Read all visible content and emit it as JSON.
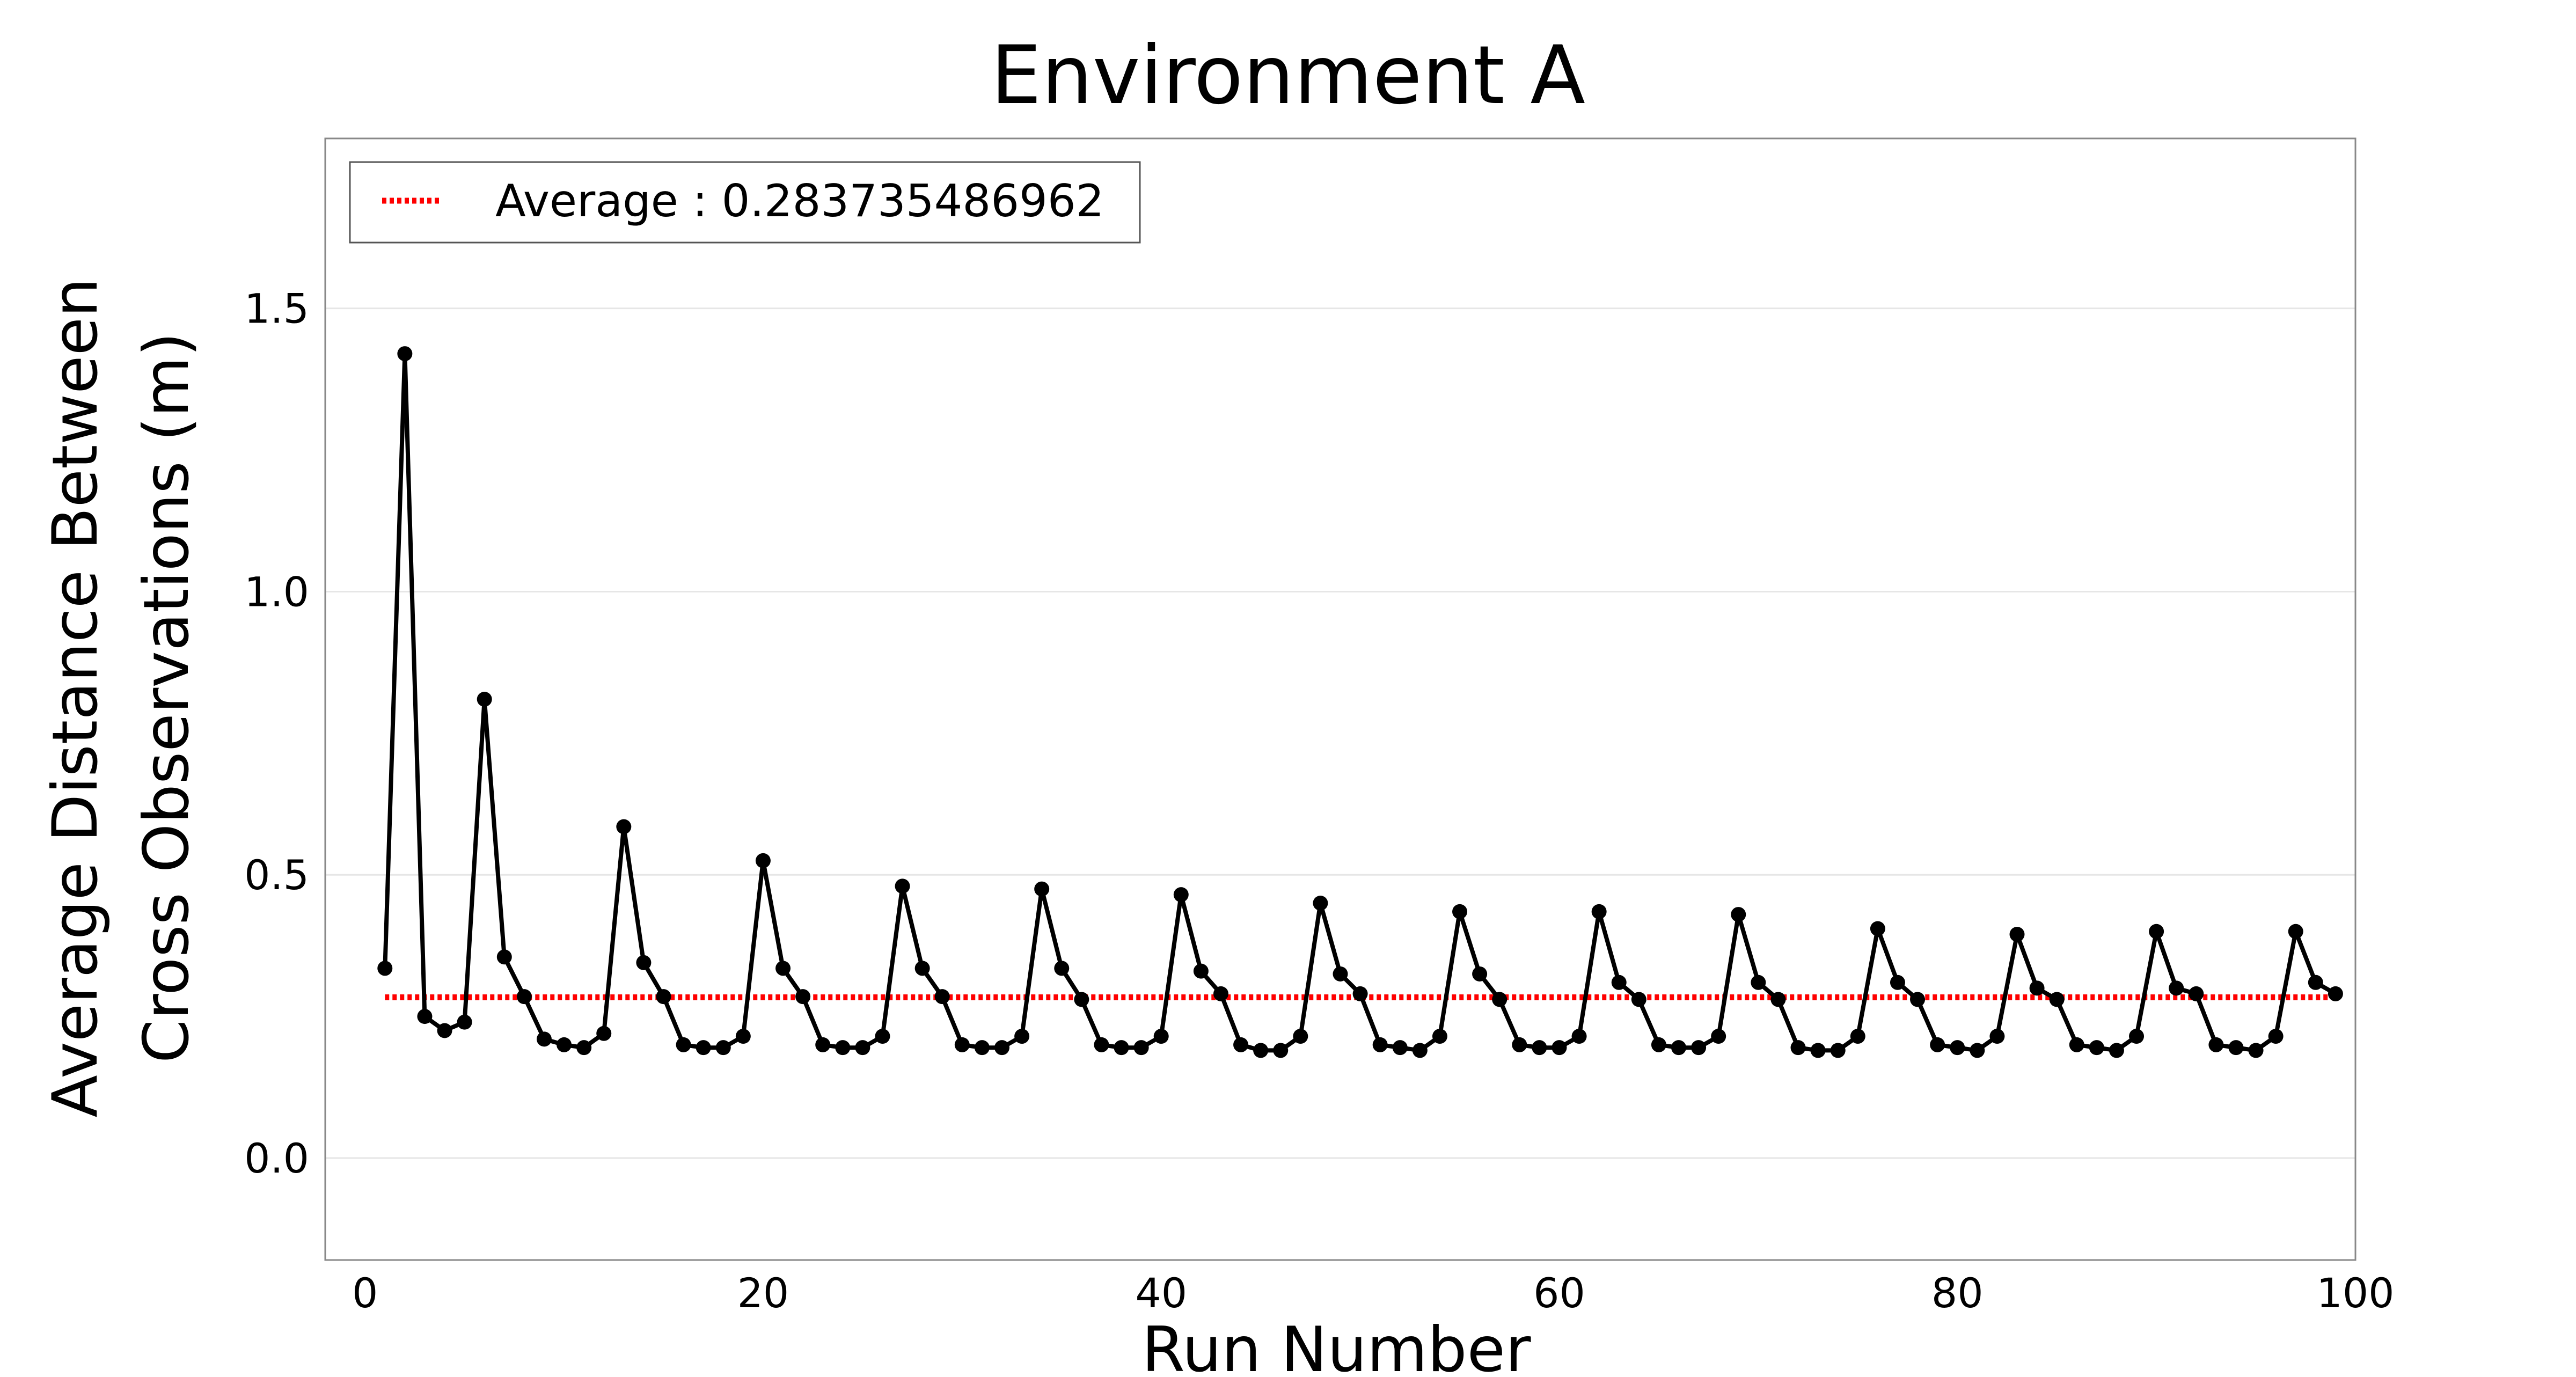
{
  "chart_data": {
    "type": "line",
    "title": "Environment A",
    "xlabel": "Run Number",
    "ylabel_line1": "Average Distance Between",
    "ylabel_line2": "Cross Observations (m)",
    "xlim": [
      -2,
      100
    ],
    "ylim": [
      -0.18,
      1.8
    ],
    "x_ticks": [
      0,
      20,
      40,
      60,
      80,
      100
    ],
    "x_tick_labels": [
      "0",
      "20",
      "40",
      "60",
      "80",
      "100"
    ],
    "y_ticks": [
      0.0,
      0.5,
      1.0,
      1.5
    ],
    "y_tick_labels": [
      "0.0",
      "0.5",
      "1.0",
      "1.5"
    ],
    "grid": "horizontal",
    "legend_position": "top-left",
    "legend": [
      {
        "label": "Average : 0.283735486962",
        "style": "dotted",
        "color": "#ff0000"
      }
    ],
    "average": {
      "value": 0.283735486962,
      "x_start": 1,
      "x_end": 99,
      "color": "#ff0000"
    },
    "series": [
      {
        "color": "#000000",
        "marker": "circle",
        "x": [
          1,
          2,
          3,
          4,
          5,
          6,
          7,
          8,
          9,
          10,
          11,
          12,
          13,
          14,
          15,
          16,
          17,
          18,
          19,
          20,
          21,
          22,
          23,
          24,
          25,
          26,
          27,
          28,
          29,
          30,
          31,
          32,
          33,
          34,
          35,
          36,
          37,
          38,
          39,
          40,
          41,
          42,
          43,
          44,
          45,
          46,
          47,
          48,
          49,
          50,
          51,
          52,
          53,
          54,
          55,
          56,
          57,
          58,
          59,
          60,
          61,
          62,
          63,
          64,
          65,
          66,
          67,
          68,
          69,
          70,
          71,
          72,
          73,
          74,
          75,
          76,
          77,
          78,
          79,
          80,
          81,
          82,
          83,
          84,
          85,
          86,
          87,
          88,
          89,
          90,
          91,
          92,
          93,
          94,
          95,
          96,
          97,
          98,
          99
        ],
        "y": [
          0.335,
          1.42,
          0.25,
          0.225,
          0.24,
          0.81,
          0.355,
          0.285,
          0.21,
          0.2,
          0.195,
          0.22,
          0.585,
          0.345,
          0.285,
          0.2,
          0.195,
          0.195,
          0.215,
          0.525,
          0.335,
          0.285,
          0.2,
          0.195,
          0.195,
          0.215,
          0.48,
          0.335,
          0.285,
          0.2,
          0.195,
          0.195,
          0.215,
          0.475,
          0.335,
          0.28,
          0.2,
          0.195,
          0.195,
          0.215,
          0.465,
          0.33,
          0.29,
          0.2,
          0.19,
          0.19,
          0.215,
          0.45,
          0.325,
          0.29,
          0.2,
          0.195,
          0.19,
          0.215,
          0.435,
          0.325,
          0.28,
          0.2,
          0.195,
          0.195,
          0.215,
          0.435,
          0.31,
          0.28,
          0.2,
          0.195,
          0.195,
          0.215,
          0.43,
          0.31,
          0.28,
          0.195,
          0.19,
          0.19,
          0.215,
          0.405,
          0.31,
          0.28,
          0.2,
          0.195,
          0.19,
          0.215,
          0.395,
          0.3,
          0.28,
          0.2,
          0.195,
          0.19,
          0.215,
          0.4,
          0.3,
          0.29,
          0.2,
          0.195,
          0.19,
          0.215,
          0.4,
          0.31,
          0.29
        ]
      }
    ]
  }
}
